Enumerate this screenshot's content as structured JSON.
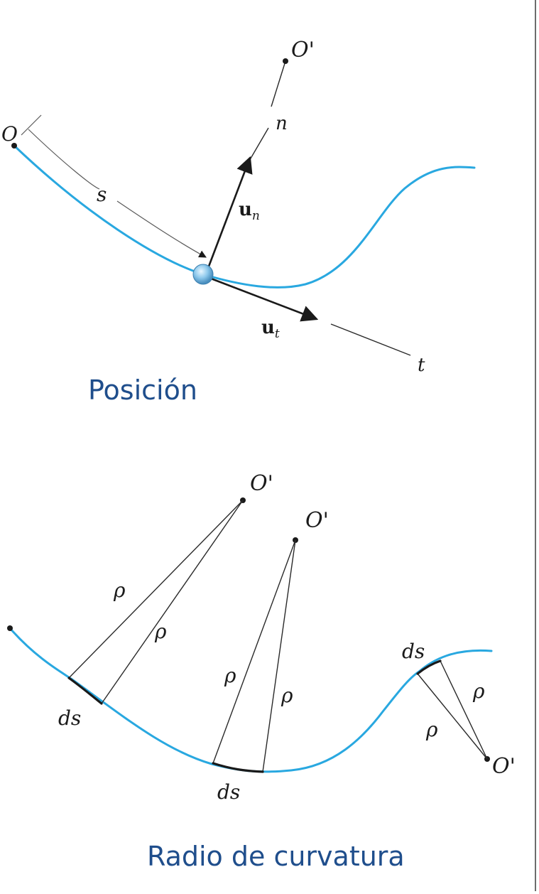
{
  "top_diagram": {
    "origin_label": "O",
    "center_label": "O'",
    "normal_axis_label": "n",
    "tangent_axis_label": "t",
    "arc_length_label": "s",
    "normal_unit_vector": {
      "base": "u",
      "subscript": "n"
    },
    "tangent_unit_vector": {
      "base": "u",
      "subscript": "t"
    },
    "caption": "Posición"
  },
  "bottom_diagram": {
    "centers": [
      {
        "label": "O'"
      },
      {
        "label": "O'"
      },
      {
        "label": "O'"
      }
    ],
    "radius_label": "ρ",
    "arc_element_label": "ds",
    "caption": "Radio de curvatura"
  },
  "colors": {
    "curve": "#29a8e0",
    "caption_text": "#1f4e8c",
    "ink": "#1a1a1a",
    "particle": "#8ec9ec"
  }
}
